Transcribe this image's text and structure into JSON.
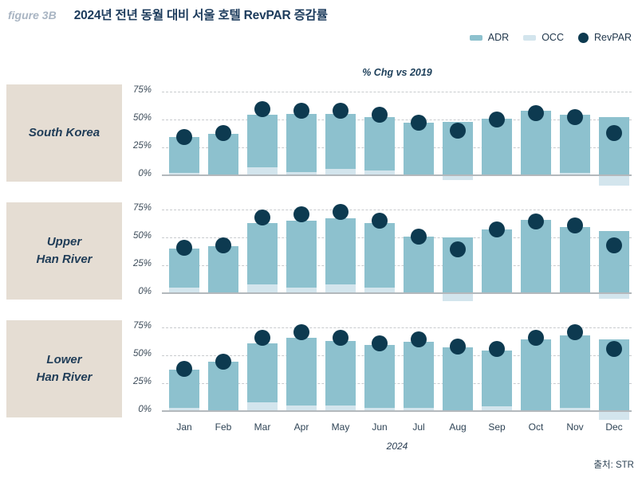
{
  "header": {
    "figure_label": "figure 3B",
    "title": "2024년 전년 동월 대비 서울 호텔 RevPAR 증감률"
  },
  "legend": {
    "items": [
      {
        "label": "ADR",
        "swatch": "bar",
        "color": "#8dc1ce"
      },
      {
        "label": "OCC",
        "swatch": "bar",
        "color": "#d3e5ed"
      },
      {
        "label": "RevPAR",
        "swatch": "dot",
        "color": "#0d3a50"
      }
    ]
  },
  "footer": {
    "year_label": "2024",
    "source": "출처: STR"
  },
  "colors": {
    "adr_bar": "#8dc1ce",
    "occ_bar": "#d3e5ed",
    "revpar_dot": "#0d3a50",
    "category_box": "#e5ddd3",
    "title_navy": "#1c3b5c",
    "figure_label_gray": "#a9b5c3"
  },
  "chart_data": {
    "type": "bar",
    "title": "% Chg vs 2019",
    "categories": [
      "Jan",
      "Feb",
      "Mar",
      "Apr",
      "May",
      "Jun",
      "Jul",
      "Aug",
      "Sep",
      "Oct",
      "Nov",
      "Dec"
    ],
    "x_axis_year": "2024",
    "yticks": [
      0,
      25,
      50,
      75
    ],
    "ytick_suffix": "%",
    "ylim": [
      -12,
      82
    ],
    "grid": "horizontal-dashed",
    "legend_position": "top-right",
    "unit": "percent change vs 2019",
    "panels": [
      {
        "label": "South Korea",
        "label_lines": [
          "South Korea"
        ],
        "series": [
          {
            "name": "ADR",
            "values": [
              34,
              37,
              54,
              55,
              55,
              52,
              47,
              48,
              51,
              58,
              54,
              52
            ]
          },
          {
            "name": "OCC",
            "values": [
              2,
              0,
              7,
              3,
              6,
              4,
              0,
              -4,
              0,
              -1,
              2,
              -9
            ]
          },
          {
            "name": "RevPAR",
            "values": [
              34,
              38,
              59,
              58,
              58,
              54,
              47,
              40,
              50,
              56,
              52,
              38
            ]
          }
        ]
      },
      {
        "label": "Upper Han River",
        "label_lines": [
          "Upper",
          "Han River"
        ],
        "series": [
          {
            "name": "ADR",
            "values": [
              40,
              42,
              63,
              65,
              67,
              63,
              51,
              50,
              57,
              66,
              59,
              56
            ]
          },
          {
            "name": "OCC",
            "values": [
              5,
              0,
              8,
              5,
              8,
              5,
              0,
              -7,
              0,
              0,
              0,
              -5
            ]
          },
          {
            "name": "RevPAR",
            "values": [
              41,
              43,
              68,
              71,
              73,
              65,
              51,
              39,
              57,
              64,
              61,
              43
            ]
          }
        ]
      },
      {
        "label": "Lower Han River",
        "label_lines": [
          "Lower",
          "Han River"
        ],
        "series": [
          {
            "name": "ADR",
            "values": [
              37,
              44,
              61,
              66,
              63,
              59,
              62,
              57,
              54,
              64,
              68,
              64
            ]
          },
          {
            "name": "OCC",
            "values": [
              3,
              0,
              8,
              5,
              5,
              3,
              3,
              0,
              4,
              0,
              3,
              -8
            ]
          },
          {
            "name": "RevPAR",
            "values": [
              38,
              44,
              66,
              71,
              66,
              61,
              64,
              58,
              56,
              66,
              71,
              56
            ]
          }
        ]
      }
    ]
  }
}
